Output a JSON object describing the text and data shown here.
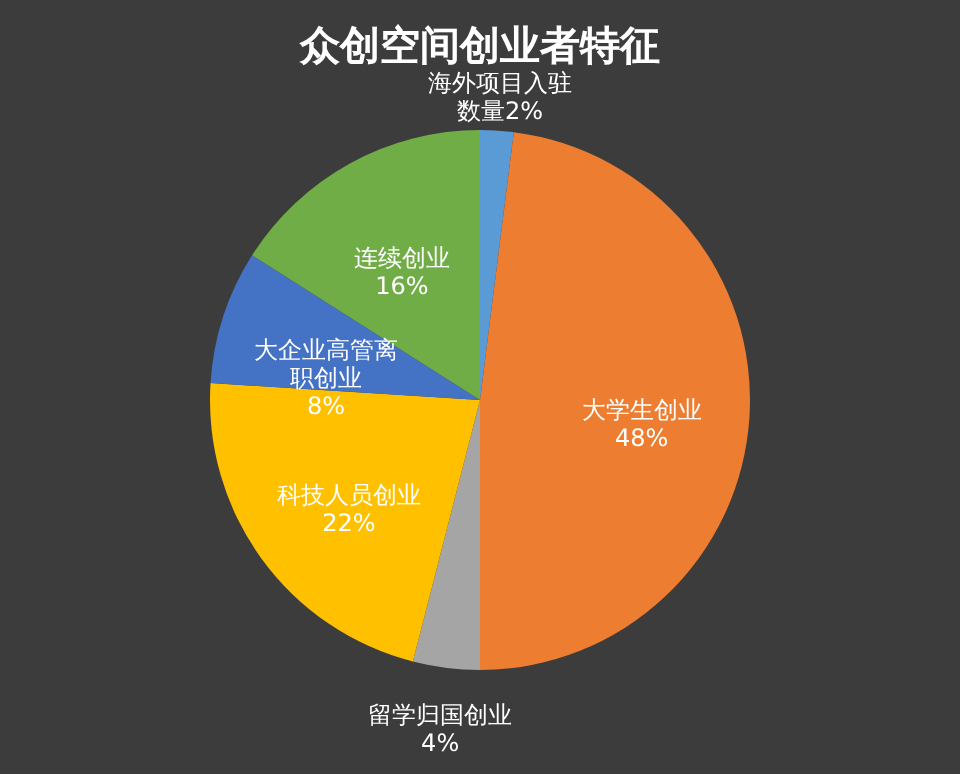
{
  "chart_data": {
    "type": "pie",
    "title": "众创空间创业者特征",
    "categories": [
      "海外项目入驻数量",
      "大学生创业",
      "留学归国创业",
      "科技人员创业",
      "大企业高管离职创业",
      "连续创业"
    ],
    "values": [
      2,
      48,
      4,
      22,
      8,
      16
    ],
    "value_labels": [
      "2%",
      "48%",
      "4%",
      "22%",
      "8%",
      "16%"
    ],
    "colors": [
      "#5b9bd5",
      "#ed7d31",
      "#a5a5a5",
      "#ffc000",
      "#4472c4",
      "#70ad47"
    ]
  }
}
